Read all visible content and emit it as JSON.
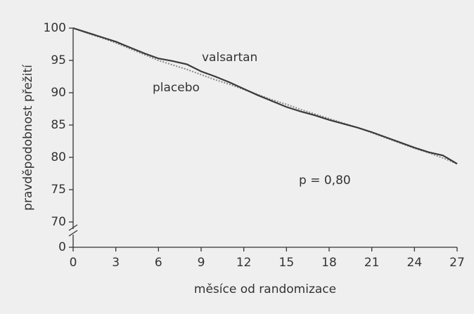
{
  "chart_data": {
    "type": "line",
    "x_label": "měsíce od randomizace",
    "y_label": "pravděpodobnost přežití",
    "x": [
      0,
      1,
      2,
      3,
      4,
      5,
      6,
      7,
      8,
      9,
      10,
      11,
      12,
      13,
      14,
      15,
      16,
      17,
      18,
      19,
      20,
      21,
      22,
      23,
      24,
      25,
      26,
      27
    ],
    "series": [
      {
        "name": "valsartan",
        "color": "#3a3a3a",
        "dash": "solid",
        "values": [
          100,
          99.3,
          98.6,
          97.9,
          97.0,
          96.1,
          95.3,
          94.9,
          94.4,
          93.3,
          92.5,
          91.6,
          90.6,
          89.6,
          88.7,
          87.8,
          87.1,
          86.5,
          85.8,
          85.2,
          84.6,
          83.9,
          83.1,
          82.3,
          81.5,
          80.8,
          80.3,
          79.0
        ]
      },
      {
        "name": "placebo",
        "color": "#8a8a8a",
        "dash": "dotted",
        "values": [
          100,
          99.2,
          98.5,
          97.7,
          96.8,
          95.9,
          95.0,
          94.3,
          93.6,
          92.8,
          92.0,
          91.3,
          90.5,
          89.7,
          88.9,
          88.2,
          87.4,
          86.7,
          86.0,
          85.3,
          84.6,
          83.8,
          83.0,
          82.2,
          81.4,
          80.7,
          79.9,
          79.0
        ]
      }
    ],
    "annotations": [
      "p = 0,80"
    ],
    "xlim": [
      0,
      27
    ],
    "xticks": [
      0,
      3,
      6,
      9,
      12,
      15,
      18,
      21,
      24,
      27
    ],
    "ylim": [
      0,
      100
    ],
    "ybreak": [
      0,
      70
    ],
    "yticks": [
      0,
      70,
      75,
      80,
      85,
      90,
      95,
      100
    ],
    "grid": false,
    "legend": "inline"
  }
}
